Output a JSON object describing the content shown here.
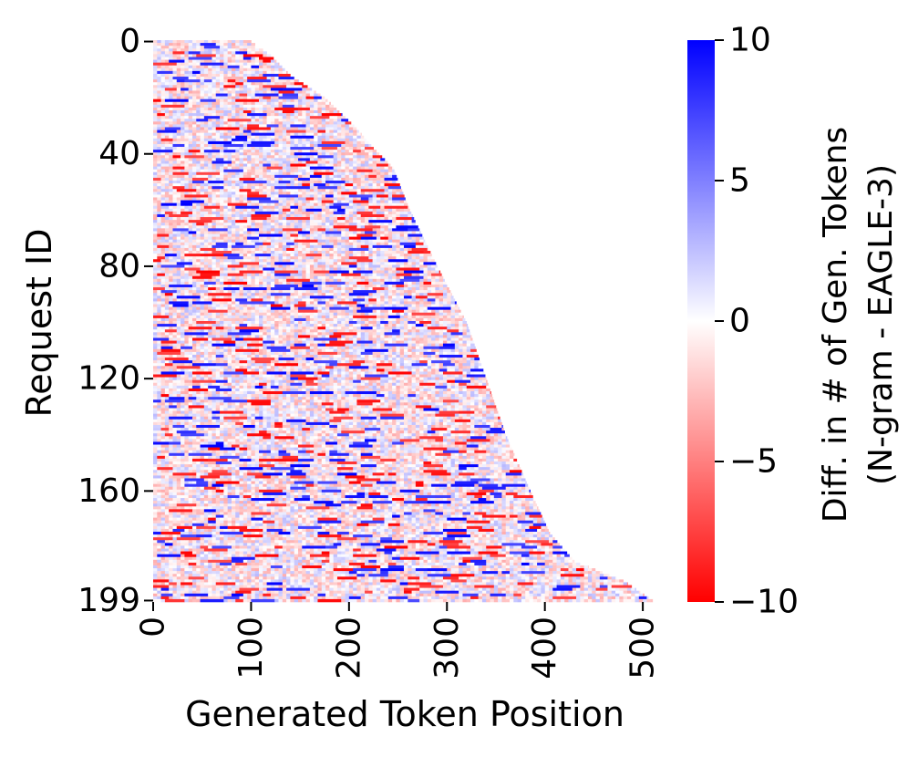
{
  "chart_data": {
    "type": "heatmap",
    "title": "",
    "xlabel": "Generated Token Position",
    "ylabel": "Request ID",
    "x_ticks": [
      "0",
      "100",
      "200",
      "300",
      "400",
      "500"
    ],
    "y_ticks": [
      "0",
      "40",
      "80",
      "120",
      "160",
      "199"
    ],
    "x_range": [
      0,
      512
    ],
    "y_range": [
      0,
      199
    ],
    "num_requests": 200,
    "colorbar": {
      "label_line1": "Diff. in # of Gen. Tokens",
      "label_line2": "(N-gram - EAGLE-3)",
      "min": -10,
      "max": 10,
      "ticks": [
        "10",
        "5",
        "0",
        "−5",
        "−10"
      ],
      "colors": {
        "negative": "#ff0000",
        "zero": "#ffffff",
        "positive": "#0000ff"
      }
    },
    "row_lengths": [
      {
        "request": 0,
        "tokens": 100
      },
      {
        "request": 5,
        "tokens": 120
      },
      {
        "request": 12,
        "tokens": 140
      },
      {
        "request": 20,
        "tokens": 175
      },
      {
        "request": 30,
        "tokens": 205
      },
      {
        "request": 38,
        "tokens": 225
      },
      {
        "request": 45,
        "tokens": 245
      },
      {
        "request": 60,
        "tokens": 262
      },
      {
        "request": 80,
        "tokens": 290
      },
      {
        "request": 100,
        "tokens": 320
      },
      {
        "request": 120,
        "tokens": 340
      },
      {
        "request": 140,
        "tokens": 360
      },
      {
        "request": 160,
        "tokens": 385
      },
      {
        "request": 175,
        "tokens": 405
      },
      {
        "request": 185,
        "tokens": 430
      },
      {
        "request": 192,
        "tokens": 480
      },
      {
        "request": 199,
        "tokens": 510
      }
    ]
  }
}
